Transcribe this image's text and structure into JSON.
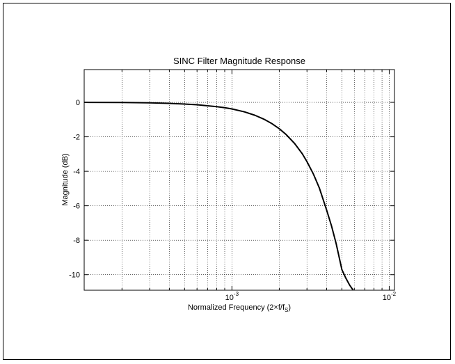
{
  "chart_data": {
    "type": "line",
    "title": "SINC Filter Magnitude Response",
    "xlabel": {
      "prefix": "Normalized Frequency (2×f/f",
      "subscript": "S",
      "suffix": ")"
    },
    "ylabel": "Magnitude (dB)",
    "x_scale": "log",
    "xlim": [
      0.000115,
      0.0108
    ],
    "ylim": [
      -10.9,
      1.9
    ],
    "grid": true,
    "x_ticks": [
      {
        "value": 0.001,
        "base": "10",
        "exponent": "-3"
      },
      {
        "value": 0.01,
        "base": "10",
        "exponent": "-2"
      }
    ],
    "y_ticks": [
      0,
      -2,
      -4,
      -6,
      -8,
      -10
    ],
    "y_tick_labels": [
      "0",
      "-2",
      "-4",
      "-6",
      "-8",
      "-10"
    ],
    "series": [
      {
        "color": "#000000",
        "x": [
          0.000115,
          0.0002,
          0.0003,
          0.0004,
          0.0005,
          0.0006,
          0.0007,
          0.0008,
          0.0009,
          0.001,
          0.0012,
          0.0014,
          0.0016,
          0.0018,
          0.002,
          0.0022,
          0.0025,
          0.0028,
          0.003,
          0.0033,
          0.0036,
          0.004,
          0.0043,
          0.0046,
          0.005,
          0.0053,
          0.0056,
          0.0059
        ],
        "y": [
          0.0,
          -0.01,
          -0.03,
          -0.06,
          -0.1,
          -0.14,
          -0.2,
          -0.25,
          -0.31,
          -0.38,
          -0.55,
          -0.75,
          -0.98,
          -1.24,
          -1.53,
          -1.85,
          -2.38,
          -2.98,
          -3.44,
          -4.17,
          -4.98,
          -6.25,
          -7.18,
          -8.2,
          -9.7,
          -10.2,
          -10.6,
          -10.9
        ]
      }
    ]
  }
}
